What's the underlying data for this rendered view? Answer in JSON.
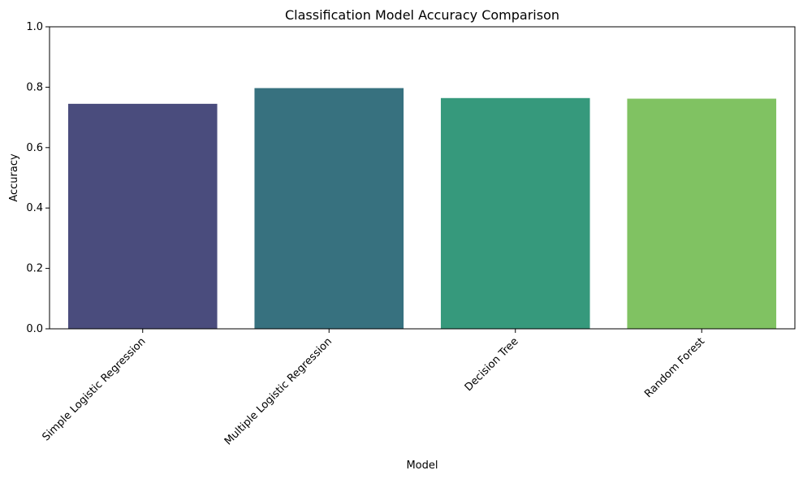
{
  "chart_data": {
    "type": "bar",
    "title": "Classification Model Accuracy Comparison",
    "xlabel": "Model",
    "ylabel": "Accuracy",
    "categories": [
      "Simple Logistic Regression",
      "Multiple Logistic Regression",
      "Decision Tree",
      "Random Forest"
    ],
    "values": [
      0.745,
      0.797,
      0.764,
      0.762
    ],
    "colors": [
      "#4a4c7d",
      "#37717f",
      "#36997c",
      "#80c262"
    ],
    "ylim": [
      0,
      1.0
    ],
    "yticks": [
      0.0,
      0.2,
      0.4,
      0.6,
      0.8,
      1.0
    ],
    "ytick_labels": [
      "0.0",
      "0.2",
      "0.4",
      "0.6",
      "0.8",
      "1.0"
    ],
    "grid": false,
    "legend": "none"
  }
}
